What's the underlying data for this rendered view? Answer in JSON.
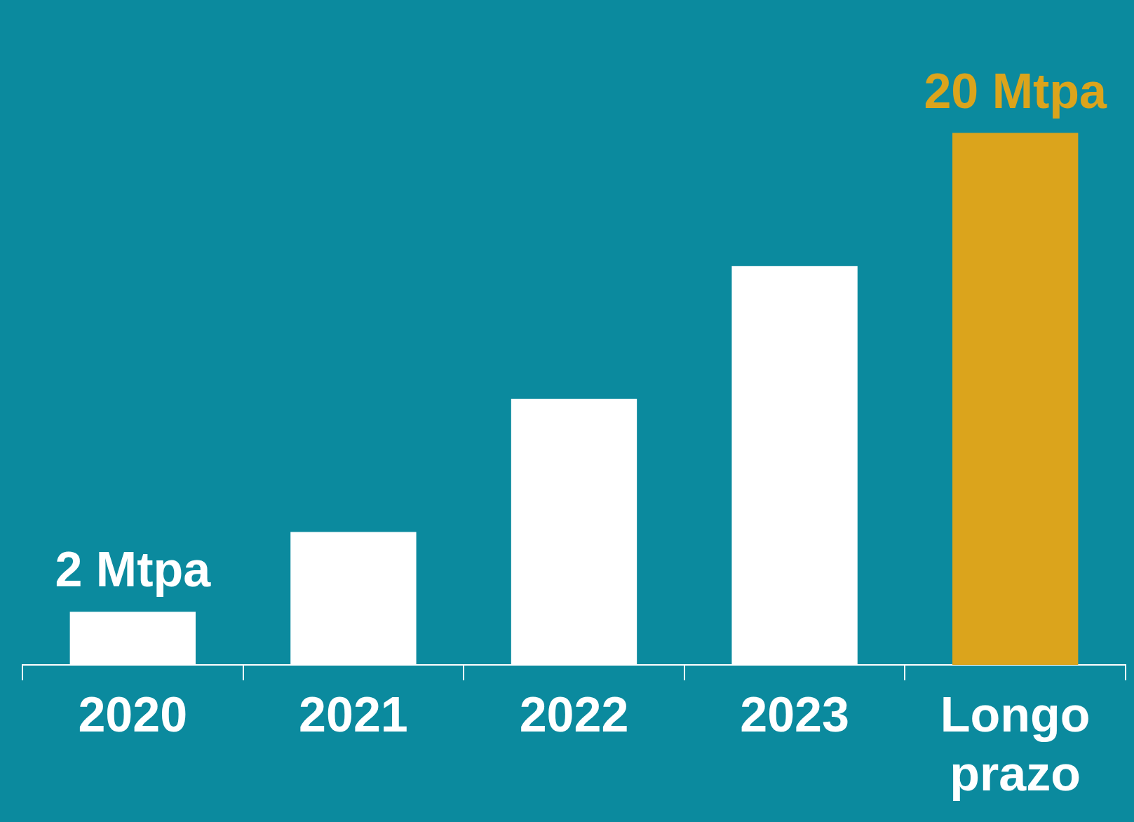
{
  "chart_data": {
    "type": "bar",
    "categories": [
      "2020",
      "2021",
      "2022",
      "2023",
      "Longo prazo"
    ],
    "values": [
      2,
      5,
      10,
      15,
      20
    ],
    "colors": [
      "#ffffff",
      "#ffffff",
      "#ffffff",
      "#ffffff",
      "#dba41c"
    ],
    "value_labels": [
      "2 Mtpa",
      null,
      null,
      null,
      "20 Mtpa"
    ],
    "grid": false,
    "legend": false
  }
}
